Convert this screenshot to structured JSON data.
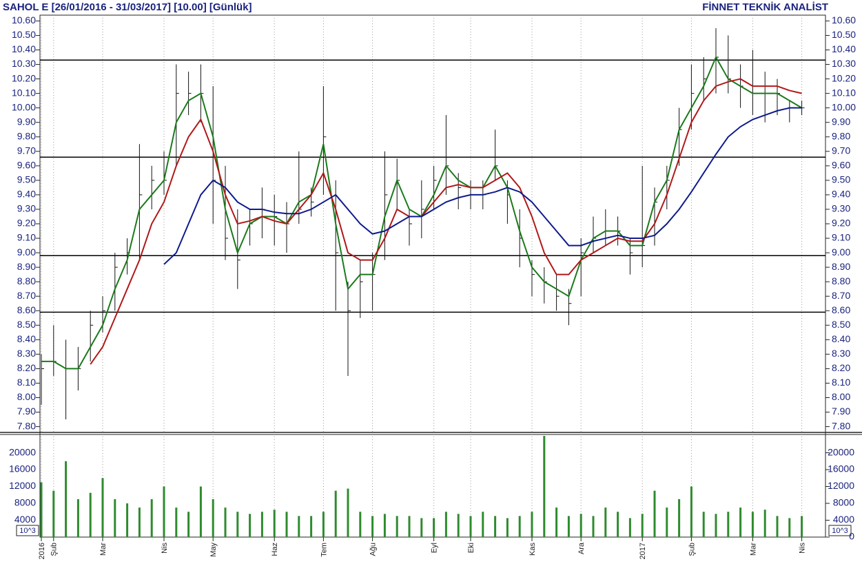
{
  "chart_data": [
    {
      "type": "ohlc",
      "title": "SAHOL E  [26/01/2016 - 31/03/2017]  [10.00]  [Günlük]",
      "brand": "FİNNET TEKNİK ANALİST",
      "categories": [
        "2016",
        "Şub",
        null,
        null,
        null,
        "Mar",
        null,
        null,
        null,
        null,
        "Nis",
        null,
        null,
        null,
        "May",
        null,
        null,
        null,
        null,
        "Haz",
        null,
        null,
        null,
        "Tem",
        null,
        null,
        null,
        "Ağu",
        null,
        null,
        null,
        null,
        "Eyl",
        null,
        null,
        "Eki",
        null,
        null,
        null,
        null,
        "Kas",
        null,
        null,
        null,
        "Ara",
        null,
        null,
        null,
        null,
        "2017",
        null,
        null,
        null,
        "Şub",
        null,
        null,
        null,
        null,
        "Mar",
        null,
        null,
        null,
        "Nis"
      ],
      "high": [
        8.3,
        8.5,
        8.4,
        8.35,
        8.6,
        8.7,
        9.0,
        9.1,
        9.75,
        9.6,
        9.7,
        10.3,
        10.25,
        10.3,
        10.15,
        9.6,
        9.3,
        9.3,
        9.45,
        9.4,
        9.35,
        9.7,
        9.45,
        10.15,
        9.5,
        8.8,
        8.95,
        9.0,
        9.7,
        9.65,
        9.3,
        9.5,
        9.6,
        9.95,
        9.55,
        9.5,
        9.5,
        9.85,
        9.5,
        9.3,
        8.95,
        8.9,
        8.85,
        8.75,
        9.1,
        9.25,
        9.3,
        9.25,
        9.1,
        9.6,
        9.45,
        9.6,
        10.0,
        10.3,
        10.35,
        10.55,
        10.5,
        10.3,
        10.4,
        10.25,
        10.2,
        10.05,
        10.05
      ],
      "low": [
        7.95,
        8.15,
        7.85,
        8.05,
        8.25,
        8.45,
        8.6,
        8.85,
        8.95,
        9.3,
        9.4,
        9.6,
        9.95,
        9.9,
        9.2,
        8.95,
        8.75,
        9.05,
        9.1,
        9.05,
        9.0,
        9.2,
        9.25,
        9.4,
        8.6,
        8.15,
        8.55,
        8.6,
        8.95,
        9.3,
        9.05,
        9.1,
        9.3,
        9.4,
        9.3,
        9.3,
        9.3,
        9.5,
        9.2,
        8.9,
        8.7,
        8.65,
        8.6,
        8.5,
        8.7,
        9.0,
        9.05,
        9.05,
        8.85,
        8.9,
        9.05,
        9.3,
        9.6,
        9.85,
        10.05,
        10.1,
        10.1,
        10.0,
        9.95,
        9.9,
        9.95,
        9.9,
        9.95
      ],
      "close": [
        8.2,
        8.25,
        8.2,
        8.2,
        8.5,
        8.6,
        8.9,
        9.0,
        9.4,
        9.5,
        9.5,
        10.1,
        10.1,
        10.1,
        9.5,
        9.1,
        8.95,
        9.2,
        9.3,
        9.25,
        9.2,
        9.3,
        9.35,
        9.8,
        9.0,
        8.6,
        8.8,
        8.85,
        9.4,
        9.5,
        9.2,
        9.3,
        9.5,
        9.6,
        9.45,
        9.4,
        9.4,
        9.6,
        9.4,
        9.1,
        8.85,
        8.8,
        8.7,
        8.65,
        9.0,
        9.1,
        9.15,
        9.15,
        9.0,
        9.05,
        9.35,
        9.5,
        9.85,
        10.1,
        10.2,
        10.35,
        10.2,
        10.15,
        10.1,
        10.1,
        10.1,
        10.0,
        10.0
      ],
      "moving_averages": [
        {
          "color": "#1a7a1a",
          "values": [
            8.25,
            8.25,
            8.2,
            8.2,
            8.35,
            8.5,
            8.75,
            8.95,
            9.3,
            9.4,
            9.5,
            9.9,
            10.05,
            10.1,
            9.8,
            9.3,
            9.0,
            9.2,
            9.25,
            9.25,
            9.2,
            9.35,
            9.4,
            9.75,
            9.2,
            8.75,
            8.85,
            8.85,
            9.25,
            9.5,
            9.3,
            9.25,
            9.4,
            9.6,
            9.5,
            9.45,
            9.45,
            9.6,
            9.45,
            9.15,
            8.9,
            8.8,
            8.75,
            8.7,
            8.95,
            9.1,
            9.15,
            9.15,
            9.05,
            9.05,
            9.35,
            9.5,
            9.85,
            10.0,
            10.15,
            10.35,
            10.2,
            10.15,
            10.1,
            10.1,
            10.1,
            10.05,
            10.0
          ]
        },
        {
          "color": "#b01818",
          "values": [
            null,
            null,
            null,
            null,
            8.23,
            8.35,
            8.55,
            8.75,
            8.95,
            9.2,
            9.35,
            9.6,
            9.8,
            9.92,
            9.7,
            9.4,
            9.2,
            9.22,
            9.25,
            9.22,
            9.2,
            9.3,
            9.4,
            9.55,
            9.3,
            9.0,
            8.95,
            8.95,
            9.1,
            9.3,
            9.25,
            9.25,
            9.35,
            9.45,
            9.47,
            9.45,
            9.45,
            9.5,
            9.55,
            9.45,
            9.25,
            9.0,
            8.85,
            8.85,
            8.95,
            9.0,
            9.05,
            9.1,
            9.08,
            9.08,
            9.2,
            9.4,
            9.65,
            9.9,
            10.05,
            10.15,
            10.18,
            10.2,
            10.15,
            10.15,
            10.15,
            10.12,
            10.1
          ]
        },
        {
          "color": "#0d1a8c",
          "values": [
            null,
            null,
            null,
            null,
            null,
            null,
            null,
            null,
            null,
            null,
            8.92,
            9.0,
            9.2,
            9.4,
            9.5,
            9.45,
            9.35,
            9.3,
            9.3,
            9.28,
            9.27,
            9.27,
            9.3,
            9.35,
            9.4,
            9.3,
            9.2,
            9.13,
            9.15,
            9.2,
            9.25,
            9.25,
            9.3,
            9.35,
            9.38,
            9.4,
            9.4,
            9.42,
            9.45,
            9.42,
            9.35,
            9.25,
            9.15,
            9.05,
            9.05,
            9.08,
            9.1,
            9.12,
            9.1,
            9.1,
            9.12,
            9.2,
            9.3,
            9.42,
            9.55,
            9.68,
            9.8,
            9.87,
            9.92,
            9.95,
            9.98,
            10.0,
            10.0
          ]
        }
      ],
      "levels": [
        10.33,
        9.66,
        8.98,
        8.59
      ],
      "ylim": [
        7.76,
        10.64
      ],
      "yticks": [
        {
          "value": 7.8,
          "label": "7.80"
        },
        {
          "value": 7.9,
          "label": "7.90"
        },
        {
          "value": 8.0,
          "label": "8.00"
        },
        {
          "value": 8.1,
          "label": "8.10"
        },
        {
          "value": 8.2,
          "label": "8.20"
        },
        {
          "value": 8.3,
          "label": "8.30"
        },
        {
          "value": 8.4,
          "label": "8.40"
        },
        {
          "value": 8.5,
          "label": "8.50"
        },
        {
          "value": 8.6,
          "label": "8.60"
        },
        {
          "value": 8.7,
          "label": "8.70"
        },
        {
          "value": 8.8,
          "label": "8.80"
        },
        {
          "value": 8.9,
          "label": "8.90"
        },
        {
          "value": 9.0,
          "label": "9.00"
        },
        {
          "value": 9.1,
          "label": "9.10"
        },
        {
          "value": 9.2,
          "label": "9.20"
        },
        {
          "value": 9.3,
          "label": "9.30"
        },
        {
          "value": 9.4,
          "label": "9.40"
        },
        {
          "value": 9.5,
          "label": "9.50"
        },
        {
          "value": 9.6,
          "label": "9.60"
        },
        {
          "value": 9.7,
          "label": "9.70"
        },
        {
          "value": 9.8,
          "label": "9.80"
        },
        {
          "value": 9.9,
          "label": "9.90"
        },
        {
          "value": 10.0,
          "label": "10.00"
        },
        {
          "value": 10.1,
          "label": "10.10"
        },
        {
          "value": 10.2,
          "label": "10.20"
        },
        {
          "value": 10.3,
          "label": "10.30"
        },
        {
          "value": 10.4,
          "label": "10.40"
        },
        {
          "value": 10.5,
          "label": "10.50"
        },
        {
          "value": 10.6,
          "label": "10.60"
        }
      ]
    },
    {
      "type": "volume",
      "unit": "10^3",
      "color": "#2e8b2e",
      "values": [
        13000,
        11000,
        18000,
        9000,
        10500,
        14000,
        9000,
        8000,
        7000,
        9000,
        12000,
        7000,
        6000,
        12000,
        9000,
        7000,
        6000,
        5500,
        6000,
        6500,
        6000,
        5000,
        5000,
        6000,
        11000,
        11500,
        6000,
        5000,
        5500,
        5000,
        5000,
        4500,
        4500,
        6000,
        5500,
        5000,
        6000,
        5000,
        4500,
        5000,
        6000,
        24000,
        7000,
        5000,
        5500,
        5000,
        7000,
        6000,
        4500,
        5500,
        11000,
        7000,
        9000,
        12000,
        6000,
        5500,
        6000,
        7000,
        6000,
        6500,
        5000,
        4500,
        5000
      ],
      "ylim": [
        0,
        24500
      ],
      "yticks": [
        0,
        4000,
        8000,
        12000,
        16000,
        20000
      ]
    }
  ]
}
